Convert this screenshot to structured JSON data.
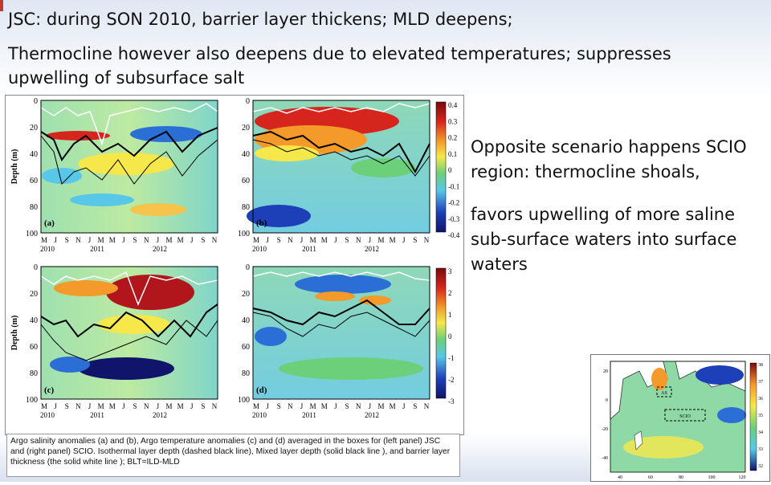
{
  "slide": {
    "heading_line": "JSC: during SON 2010, barrier layer thickens; MLD deepens;",
    "subheading": "Thermocline however also deepens due to elevated temperatures; suppresses upwelling of subsurface salt",
    "right_para1": "Opposite scenario happens SCIO region: thermocline shoals,",
    "right_para2": "favors upwelling of more saline sub-surface waters into surface waters",
    "caption": "Argo salinity anomalies (a) and (b), Argo temperature anomalies (c) and (d) averaged in the boxes for (left panel) JSC and (right panel) SCIO. Isothermal layer depth (dashed black line), Mixed layer depth (solid black line ), and  barrier layer thickness (the solid white line ); BLT=ILD-MLD"
  },
  "figure": {
    "ylabel": "Depth (m)",
    "yticks": [
      "0",
      "20",
      "40",
      "60",
      "80",
      "100"
    ],
    "months": [
      "M",
      "J",
      "S",
      "N",
      "J",
      "M",
      "M",
      "J",
      "S",
      "N",
      "J",
      "M",
      "M",
      "J",
      "S",
      "N"
    ],
    "years": [
      "2010",
      "2011",
      "2012"
    ],
    "panels": [
      "(a)",
      "(b)",
      "(c)",
      "(d)"
    ],
    "colorbar_salinity": [
      "0.4",
      "0.3",
      "0.2",
      "0.1",
      "0",
      "-0.1",
      "-0.2",
      "-0.3",
      "-0.4"
    ],
    "colorbar_temp": [
      "3",
      "2",
      "1",
      "0",
      "-1",
      "-2",
      "-3"
    ],
    "colors": {
      "red": "#b0161b",
      "orange": "#f39a2a",
      "yellow": "#f6e84a",
      "green": "#6ccf7a",
      "cyan": "#59c7e8",
      "blue": "#1d3fb8",
      "navy": "#10146b"
    }
  },
  "map": {
    "box_labels": [
      "AS",
      "SCIO"
    ],
    "yticks": [
      "20",
      "0",
      "-20",
      "-40"
    ],
    "xticks": [
      "40",
      "60",
      "80",
      "100",
      "120"
    ],
    "colorbar": [
      "38",
      "37",
      "36",
      "35",
      "34",
      "33",
      "32"
    ]
  }
}
